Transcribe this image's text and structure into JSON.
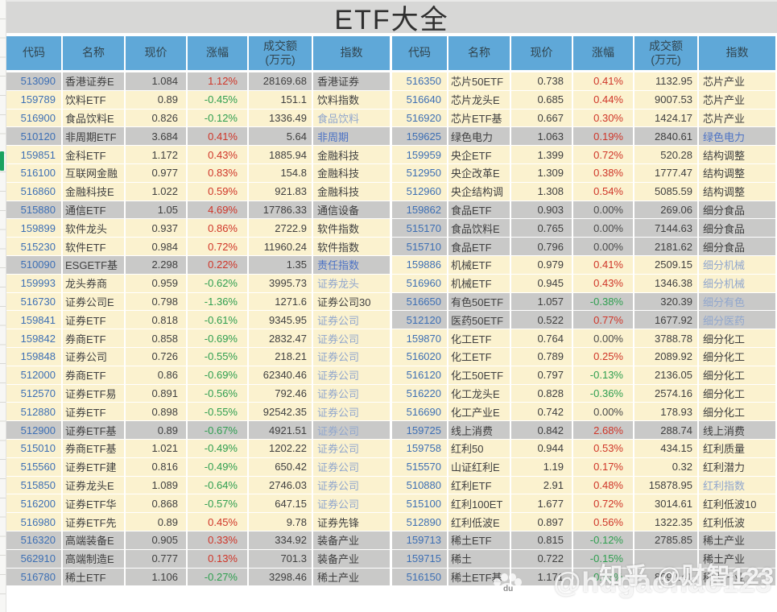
{
  "title": "ETF大全",
  "columns": [
    {
      "key": "code",
      "label": "代码"
    },
    {
      "key": "name",
      "label": "名称"
    },
    {
      "key": "price",
      "label": "现价"
    },
    {
      "key": "change",
      "label": "涨幅"
    },
    {
      "key": "turnover",
      "label": "成交额",
      "sub": "(万元)"
    },
    {
      "key": "index",
      "label": "指数"
    }
  ],
  "colors": {
    "header_bg": "#5fa8d8",
    "cream_row": "#fbf2cf",
    "gray_row": "#c9c9c8",
    "code_text": "#3d6fb4",
    "up_red": "#cf3528",
    "down_green": "#2e9e4f",
    "index_link_blue": "#4c72c4",
    "index_link_lightblue": "#90a6cd"
  },
  "left_table": {
    "rows": [
      {
        "code": "513090",
        "name": "香港证券E",
        "price": "1.084",
        "change": "1.12%",
        "turnover": "28169.68",
        "index": "香港证券",
        "bg": "gray",
        "index_color": "dark"
      },
      {
        "code": "159789",
        "name": "饮料ETF",
        "price": "0.89",
        "change": "-0.45%",
        "turnover": "151.1",
        "index": "饮料指数",
        "bg": "cream",
        "index_color": "dark"
      },
      {
        "code": "516900",
        "name": "食品饮料E",
        "price": "0.826",
        "change": "-0.12%",
        "turnover": "1336.49",
        "index": "食品饮料",
        "bg": "cream",
        "index_color": "lightblue"
      },
      {
        "code": "510120",
        "name": "非周期ETF",
        "price": "3.684",
        "change": "0.41%",
        "turnover": "5.64",
        "index": "非周期",
        "bg": "gray",
        "index_color": "blue"
      },
      {
        "code": "159851",
        "name": "金科ETF",
        "price": "1.172",
        "change": "0.43%",
        "turnover": "1885.94",
        "index": "金融科技",
        "bg": "cream",
        "index_color": "dark"
      },
      {
        "code": "516100",
        "name": "互联网金融",
        "price": "0.977",
        "change": "0.83%",
        "turnover": "154.8",
        "index": "金融科技",
        "bg": "cream",
        "index_color": "dark"
      },
      {
        "code": "516860",
        "name": "金融科技E",
        "price": "1.022",
        "change": "0.59%",
        "turnover": "921.83",
        "index": "金融科技",
        "bg": "cream",
        "index_color": "dark"
      },
      {
        "code": "515880",
        "name": "通信ETF",
        "price": "1.05",
        "change": "4.69%",
        "turnover": "17786.33",
        "index": "通信设备",
        "bg": "gray",
        "index_color": "dark"
      },
      {
        "code": "159899",
        "name": "软件龙头",
        "price": "0.937",
        "change": "0.86%",
        "turnover": "2722.9",
        "index": "软件指数",
        "bg": "cream",
        "index_color": "dark"
      },
      {
        "code": "515230",
        "name": "软件ETF",
        "price": "0.984",
        "change": "0.72%",
        "turnover": "11960.24",
        "index": "软件指数",
        "bg": "cream",
        "index_color": "dark"
      },
      {
        "code": "510090",
        "name": "ESGETF基",
        "price": "2.298",
        "change": "0.22%",
        "turnover": "1.35",
        "index": "责任指数",
        "bg": "gray",
        "index_color": "blue"
      },
      {
        "code": "159993",
        "name": "龙头券商",
        "price": "0.959",
        "change": "-0.62%",
        "turnover": "3995.73",
        "index": "证券龙头",
        "bg": "cream",
        "index_color": "lightblue"
      },
      {
        "code": "516730",
        "name": "证券公司E",
        "price": "0.798",
        "change": "-1.36%",
        "turnover": "1271.6",
        "index": "证券公司30",
        "bg": "cream",
        "index_color": "dark"
      },
      {
        "code": "159841",
        "name": "证券ETF",
        "price": "0.818",
        "change": "-0.61%",
        "turnover": "9345.95",
        "index": "证券公司",
        "bg": "cream",
        "index_color": "lightblue"
      },
      {
        "code": "159842",
        "name": "券商ETF",
        "price": "0.858",
        "change": "-0.69%",
        "turnover": "2832.47",
        "index": "证券公司",
        "bg": "cream",
        "index_color": "lightblue"
      },
      {
        "code": "159848",
        "name": "证券公司",
        "price": "0.726",
        "change": "-0.55%",
        "turnover": "218.21",
        "index": "证券公司",
        "bg": "cream",
        "index_color": "lightblue"
      },
      {
        "code": "512000",
        "name": "券商ETF",
        "price": "0.86",
        "change": "-0.69%",
        "turnover": "62340.46",
        "index": "证券公司",
        "bg": "cream",
        "index_color": "lightblue"
      },
      {
        "code": "512570",
        "name": "证券ETF易",
        "price": "0.891",
        "change": "-0.56%",
        "turnover": "792.46",
        "index": "证券公司",
        "bg": "cream",
        "index_color": "lightblue"
      },
      {
        "code": "512880",
        "name": "证券ETF",
        "price": "0.898",
        "change": "-0.55%",
        "turnover": "92542.35",
        "index": "证券公司",
        "bg": "cream",
        "index_color": "lightblue"
      },
      {
        "code": "512900",
        "name": "证券ETF基",
        "price": "0.89",
        "change": "-0.67%",
        "turnover": "4921.51",
        "index": "证券公司",
        "bg": "gray",
        "index_color": "lightblue"
      },
      {
        "code": "515010",
        "name": "券商ETF基",
        "price": "1.021",
        "change": "-0.49%",
        "turnover": "1202.22",
        "index": "证券公司",
        "bg": "cream",
        "index_color": "lightblue"
      },
      {
        "code": "515560",
        "name": "证券ETF建",
        "price": "0.816",
        "change": "-0.49%",
        "turnover": "650.42",
        "index": "证券公司",
        "bg": "cream",
        "index_color": "lightblue"
      },
      {
        "code": "515850",
        "name": "证券龙头E",
        "price": "1.089",
        "change": "-0.64%",
        "turnover": "2746.03",
        "index": "证券公司",
        "bg": "cream",
        "index_color": "lightblue"
      },
      {
        "code": "516200",
        "name": "证券ETF华",
        "price": "0.868",
        "change": "-0.57%",
        "turnover": "647.15",
        "index": "证券公司",
        "bg": "cream",
        "index_color": "lightblue"
      },
      {
        "code": "516980",
        "name": "证券ETF先",
        "price": "0.89",
        "change": "0.45%",
        "turnover": "9.78",
        "index": "证券先锋",
        "bg": "cream",
        "index_color": "dark"
      },
      {
        "code": "516320",
        "name": "高端装备E",
        "price": "0.905",
        "change": "0.33%",
        "turnover": "334.92",
        "index": "装备产业",
        "bg": "gray",
        "index_color": "dark"
      },
      {
        "code": "562910",
        "name": "高端制造E",
        "price": "0.777",
        "change": "0.13%",
        "turnover": "701.3",
        "index": "装备产业",
        "bg": "gray",
        "index_color": "dark"
      },
      {
        "code": "516780",
        "name": "稀土ETF",
        "price": "1.106",
        "change": "-0.27%",
        "turnover": "3298.46",
        "index": "稀土产业",
        "bg": "gray",
        "index_color": "dark"
      }
    ]
  },
  "right_table": {
    "rows": [
      {
        "code": "516350",
        "name": "芯片50ETF",
        "price": "0.738",
        "change": "0.41%",
        "turnover": "1132.95",
        "index": "芯片产业",
        "bg": "cream",
        "index_color": "dark"
      },
      {
        "code": "516640",
        "name": "芯片龙头E",
        "price": "0.685",
        "change": "0.44%",
        "turnover": "9007.53",
        "index": "芯片产业",
        "bg": "cream",
        "index_color": "dark"
      },
      {
        "code": "516920",
        "name": "芯片ETF基",
        "price": "0.667",
        "change": "0.30%",
        "turnover": "1424.17",
        "index": "芯片产业",
        "bg": "cream",
        "index_color": "dark"
      },
      {
        "code": "159625",
        "name": "绿色电力",
        "price": "1.063",
        "change": "0.19%",
        "turnover": "2840.61",
        "index": "绿色电力",
        "bg": "gray",
        "index_color": "blue"
      },
      {
        "code": "159959",
        "name": "央企ETF",
        "price": "1.399",
        "change": "0.72%",
        "turnover": "520.28",
        "index": "结构调整",
        "bg": "cream",
        "index_color": "dark"
      },
      {
        "code": "512950",
        "name": "央企改革E",
        "price": "1.309",
        "change": "0.38%",
        "turnover": "1777.47",
        "index": "结构调整",
        "bg": "cream",
        "index_color": "dark"
      },
      {
        "code": "512960",
        "name": "央企结构调",
        "price": "1.308",
        "change": "0.54%",
        "turnover": "5085.59",
        "index": "结构调整",
        "bg": "cream",
        "index_color": "dark"
      },
      {
        "code": "159862",
        "name": "食品ETF",
        "price": "0.903",
        "change": "0.00%",
        "turnover": "269.06",
        "index": "细分食品",
        "bg": "gray",
        "index_color": "dark"
      },
      {
        "code": "515170",
        "name": "食品饮料E",
        "price": "0.765",
        "change": "0.00%",
        "turnover": "7144.63",
        "index": "细分食品",
        "bg": "gray",
        "index_color": "dark"
      },
      {
        "code": "515710",
        "name": "食品ETF",
        "price": "0.796",
        "change": "0.00%",
        "turnover": "2181.62",
        "index": "细分食品",
        "bg": "gray",
        "index_color": "dark"
      },
      {
        "code": "159886",
        "name": "机械ETF",
        "price": "0.979",
        "change": "0.41%",
        "turnover": "2509.15",
        "index": "细分机械",
        "bg": "cream",
        "index_color": "lightblue"
      },
      {
        "code": "516960",
        "name": "机械ETF",
        "price": "0.945",
        "change": "0.43%",
        "turnover": "1346.38",
        "index": "细分机械",
        "bg": "cream",
        "index_color": "lightblue"
      },
      {
        "code": "516650",
        "name": "有色50ETF",
        "price": "1.057",
        "change": "-0.38%",
        "turnover": "320.39",
        "index": "细分有色",
        "bg": "gray",
        "index_color": "lightblue"
      },
      {
        "code": "512120",
        "name": "医药50ETF",
        "price": "0.522",
        "change": "0.77%",
        "turnover": "1677.92",
        "index": "细分医药",
        "bg": "gray",
        "index_color": "lightblue"
      },
      {
        "code": "159870",
        "name": "化工ETF",
        "price": "0.764",
        "change": "0.00%",
        "turnover": "3788.78",
        "index": "细分化工",
        "bg": "cream",
        "index_color": "dark"
      },
      {
        "code": "516020",
        "name": "化工ETF",
        "price": "0.789",
        "change": "0.25%",
        "turnover": "2089.92",
        "index": "细分化工",
        "bg": "cream",
        "index_color": "dark"
      },
      {
        "code": "516120",
        "name": "化工50ETF",
        "price": "0.797",
        "change": "-0.13%",
        "turnover": "2136.05",
        "index": "细分化工",
        "bg": "cream",
        "index_color": "dark"
      },
      {
        "code": "516220",
        "name": "化工龙头E",
        "price": "0.828",
        "change": "-0.36%",
        "turnover": "2574.16",
        "index": "细分化工",
        "bg": "cream",
        "index_color": "dark"
      },
      {
        "code": "516690",
        "name": "化工产业E",
        "price": "0.742",
        "change": "0.00%",
        "turnover": "178.93",
        "index": "细分化工",
        "bg": "cream",
        "index_color": "dark"
      },
      {
        "code": "159725",
        "name": "线上消费",
        "price": "0.842",
        "change": "2.68%",
        "turnover": "288.74",
        "index": "线上消费",
        "bg": "gray",
        "index_color": "dark"
      },
      {
        "code": "159758",
        "name": "红利50",
        "price": "0.944",
        "change": "0.53%",
        "turnover": "434.15",
        "index": "红利质量",
        "bg": "cream",
        "index_color": "dark"
      },
      {
        "code": "515570",
        "name": "山证红利E",
        "price": "1.19",
        "change": "0.17%",
        "turnover": "0.32",
        "index": "红利潜力",
        "bg": "cream",
        "index_color": "dark"
      },
      {
        "code": "510880",
        "name": "红利ETF",
        "price": "2.91",
        "change": "0.48%",
        "turnover": "15878.95",
        "index": "红利指数",
        "bg": "cream",
        "index_color": "lightblue"
      },
      {
        "code": "515100",
        "name": "红利100ET",
        "price": "1.677",
        "change": "0.72%",
        "turnover": "3014.61",
        "index": "红利低波10",
        "bg": "cream",
        "index_color": "dark"
      },
      {
        "code": "512890",
        "name": "红利低波E",
        "price": "0.897",
        "change": "0.56%",
        "turnover": "1322.35",
        "index": "红利低波",
        "bg": "cream",
        "index_color": "dark"
      },
      {
        "code": "159713",
        "name": "稀土ETF",
        "price": "0.815",
        "change": "-0.12%",
        "turnover": "2785.85",
        "index": "稀土产业",
        "bg": "gray",
        "index_color": "dark"
      },
      {
        "code": "159715",
        "name": "稀土",
        "price": "0.722",
        "change": "-0.15%",
        "turnover": "",
        "index": "稀土产业",
        "bg": "gray",
        "index_color": "dark"
      },
      {
        "code": "516150",
        "name": "稀土ETF基",
        "price": "1.171",
        "change": "-0.43%",
        "turnover": "8092.41",
        "index": "稀土产业",
        "bg": "gray",
        "index_color": "dark"
      }
    ]
  },
  "watermark": {
    "zhihu_text": "知乎 @财智123",
    "baidu_text": "@hugaohao123",
    "paw_icon": "baidu-paw-icon",
    "paw_label": "du"
  }
}
